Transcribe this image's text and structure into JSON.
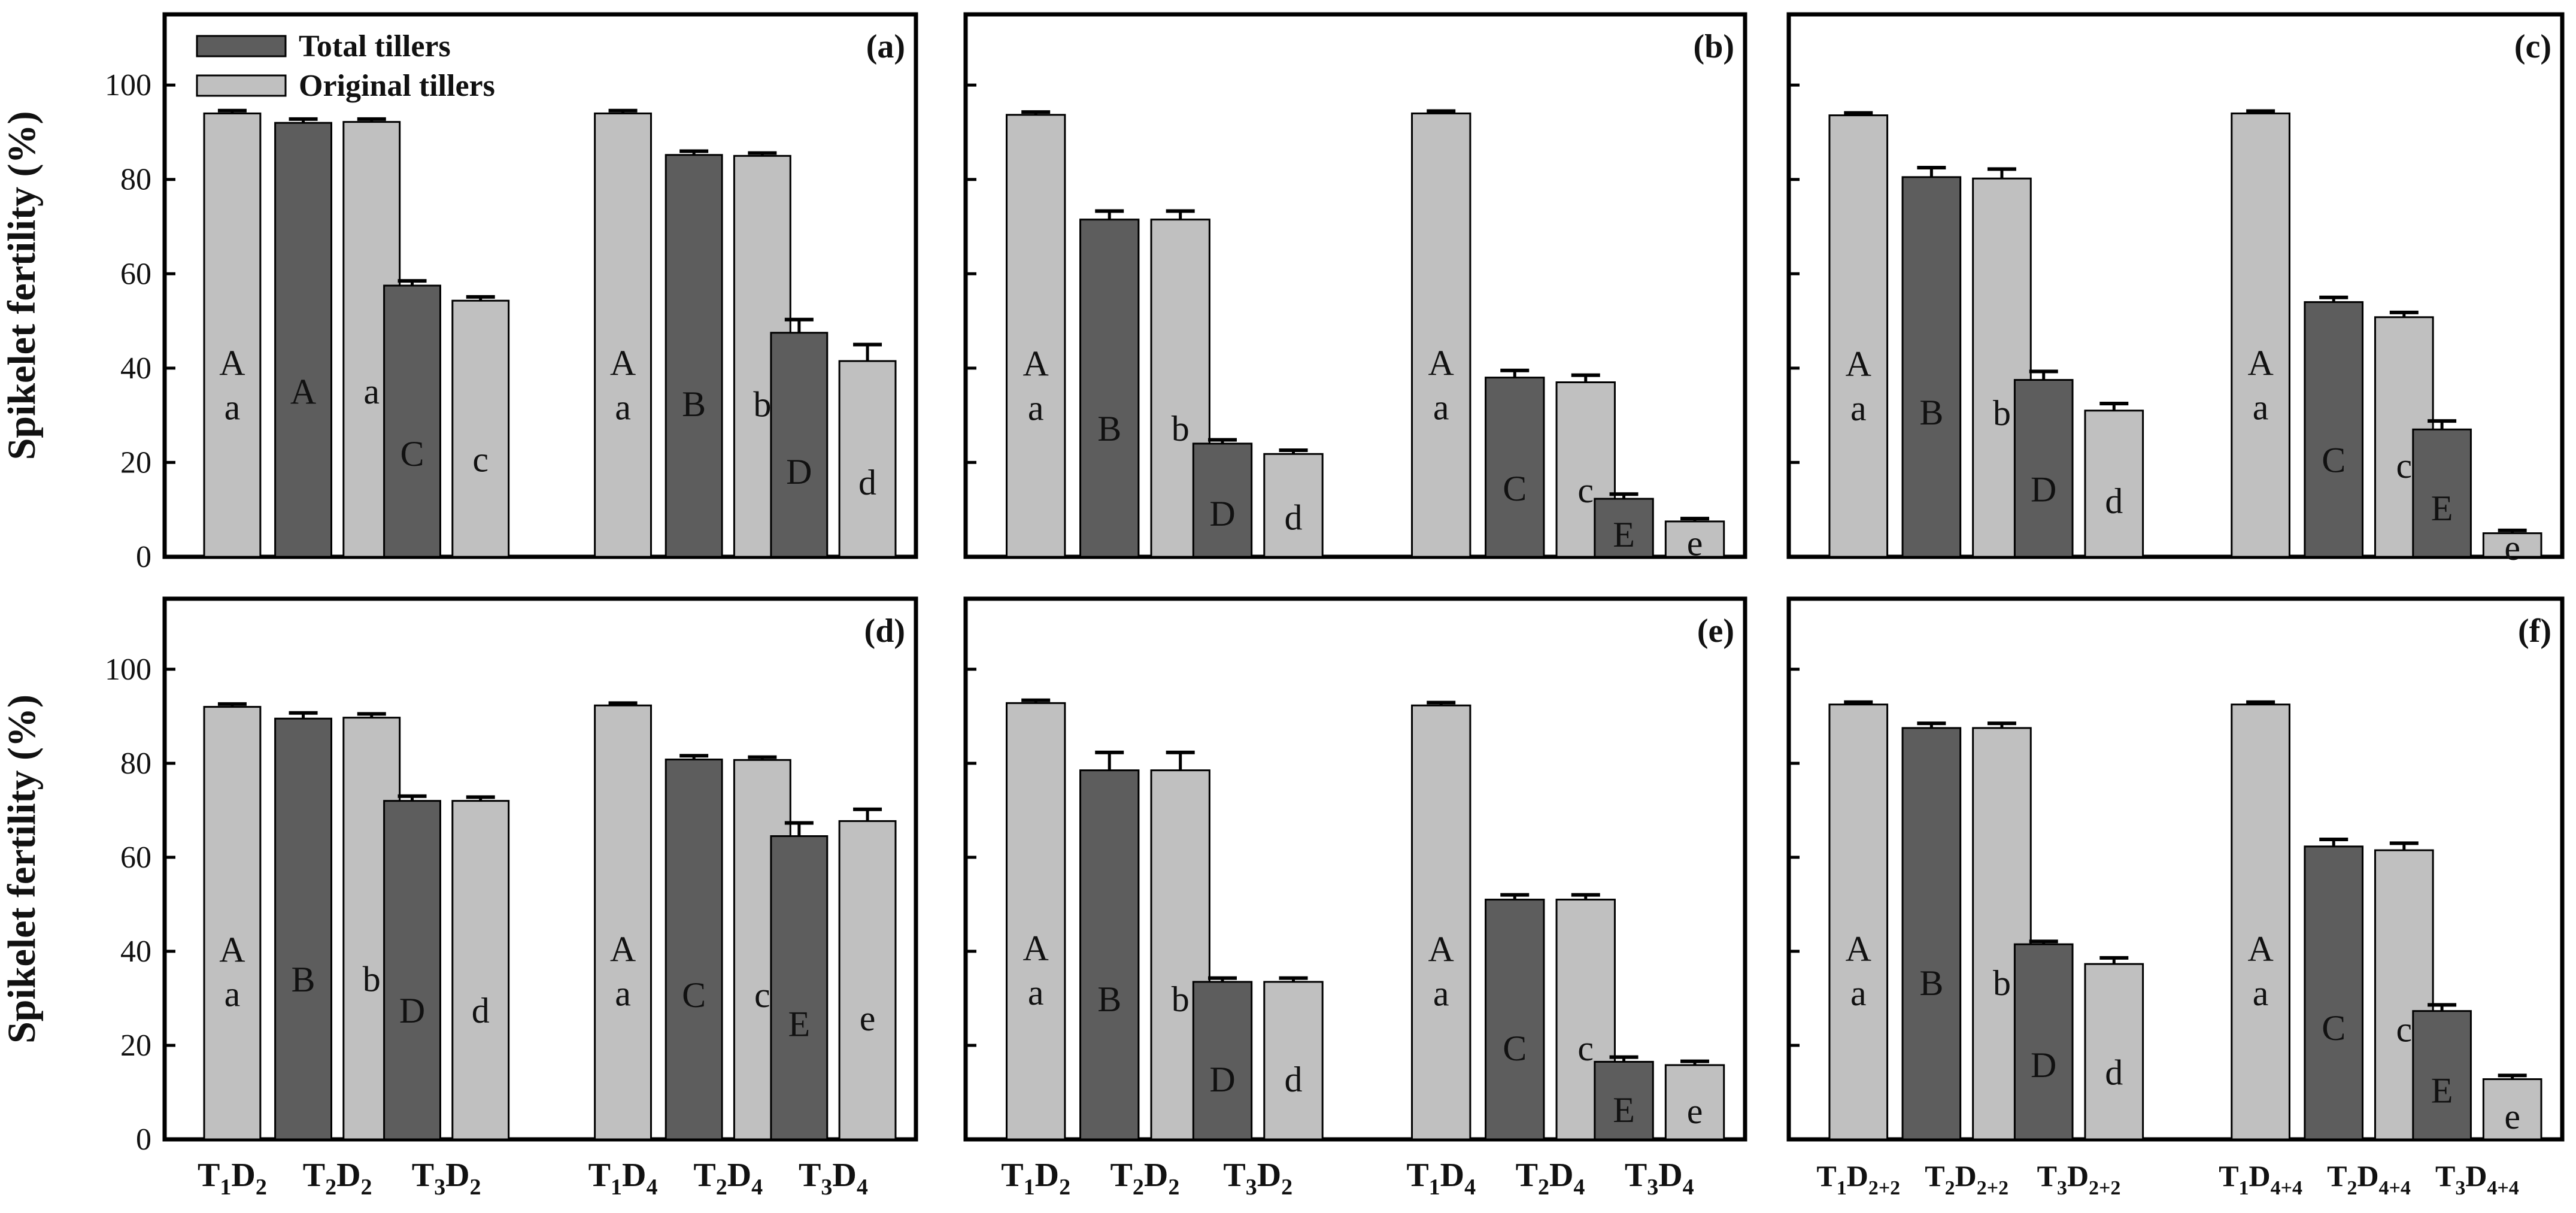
{
  "colors": {
    "total": "#5d5d5d",
    "original": "#c0c0c0",
    "frame": "#000000",
    "label": "#111111"
  },
  "y_axis": {
    "label": "Spikelet fertility (%)",
    "ylim": [
      0,
      115
    ],
    "ticks": [
      0,
      20,
      40,
      60,
      80,
      100
    ],
    "tick_labels": [
      "0",
      "20",
      "40",
      "60",
      "80",
      "100"
    ]
  },
  "legend": {
    "position": "top-left of panel (a)",
    "entries": [
      {
        "series": "total",
        "label": "Total tillers"
      },
      {
        "series": "original",
        "label": "Original tillers"
      }
    ]
  },
  "chart_data": [
    {
      "type": "bar",
      "title": "(a)",
      "row": 0,
      "col": 0,
      "categories": [
        {
          "T": "1",
          "D": "2"
        },
        {
          "T": "2",
          "D": "2"
        },
        {
          "T": "3",
          "D": "2"
        },
        {
          "T": "1",
          "D": "4"
        },
        {
          "T": "2",
          "D": "4"
        },
        {
          "T": "3",
          "D": "4"
        }
      ],
      "bars": [
        {
          "cat": 0,
          "series": "original",
          "value": 94.0,
          "error": 0.6,
          "letters": [
            "A",
            "a"
          ]
        },
        {
          "cat": 1,
          "series": "total",
          "value": 92.0,
          "error": 0.8,
          "letters": [
            "A"
          ]
        },
        {
          "cat": 1,
          "series": "original",
          "value": 92.2,
          "error": 0.6,
          "letters": [
            "a"
          ]
        },
        {
          "cat": 2,
          "series": "total",
          "value": 57.5,
          "error": 1.0,
          "letters": [
            "C"
          ]
        },
        {
          "cat": 2,
          "series": "original",
          "value": 54.3,
          "error": 0.8,
          "letters": [
            "c"
          ]
        },
        {
          "cat": 3,
          "series": "original",
          "value": 94.0,
          "error": 0.6,
          "letters": [
            "A",
            "a"
          ]
        },
        {
          "cat": 4,
          "series": "total",
          "value": 85.2,
          "error": 0.8,
          "letters": [
            "B"
          ]
        },
        {
          "cat": 4,
          "series": "original",
          "value": 85.0,
          "error": 0.6,
          "letters": [
            "b"
          ]
        },
        {
          "cat": 5,
          "series": "total",
          "value": 47.5,
          "error": 2.8,
          "letters": [
            "D"
          ]
        },
        {
          "cat": 5,
          "series": "original",
          "value": 41.5,
          "error": 3.5,
          "letters": [
            "d"
          ]
        }
      ]
    },
    {
      "type": "bar",
      "title": "(b)",
      "row": 0,
      "col": 1,
      "categories": [
        {
          "T": "1",
          "D": "2"
        },
        {
          "T": "2",
          "D": "2"
        },
        {
          "T": "3",
          "D": "2"
        },
        {
          "T": "1",
          "D": "4"
        },
        {
          "T": "2",
          "D": "4"
        },
        {
          "T": "3",
          "D": "4"
        }
      ],
      "bars": [
        {
          "cat": 0,
          "series": "original",
          "value": 93.7,
          "error": 0.6,
          "letters": [
            "A",
            "a"
          ]
        },
        {
          "cat": 1,
          "series": "total",
          "value": 71.5,
          "error": 1.8,
          "letters": [
            "B"
          ]
        },
        {
          "cat": 1,
          "series": "original",
          "value": 71.5,
          "error": 1.8,
          "letters": [
            "b"
          ]
        },
        {
          "cat": 2,
          "series": "total",
          "value": 24.0,
          "error": 0.8,
          "letters": [
            "D"
          ]
        },
        {
          "cat": 2,
          "series": "original",
          "value": 21.8,
          "error": 0.8,
          "letters": [
            "d"
          ]
        },
        {
          "cat": 3,
          "series": "original",
          "value": 94.0,
          "error": 0.5,
          "letters": [
            "A",
            "a"
          ]
        },
        {
          "cat": 4,
          "series": "total",
          "value": 38.0,
          "error": 1.5,
          "letters": [
            "C"
          ]
        },
        {
          "cat": 4,
          "series": "original",
          "value": 37.0,
          "error": 1.5,
          "letters": [
            "c"
          ]
        },
        {
          "cat": 5,
          "series": "total",
          "value": 12.3,
          "error": 1.0,
          "letters": [
            "E"
          ]
        },
        {
          "cat": 5,
          "series": "original",
          "value": 7.5,
          "error": 0.6,
          "letters": [
            "e"
          ]
        }
      ]
    },
    {
      "type": "bar",
      "title": "(c)",
      "row": 0,
      "col": 2,
      "categories": [
        {
          "T": "1",
          "D": "2+2"
        },
        {
          "T": "2",
          "D": "2+2"
        },
        {
          "T": "3",
          "D": "2+2"
        },
        {
          "T": "1",
          "D": "4+4"
        },
        {
          "T": "2",
          "D": "4+4"
        },
        {
          "T": "3",
          "D": "4+4"
        }
      ],
      "bars": [
        {
          "cat": 0,
          "series": "original",
          "value": 93.6,
          "error": 0.5,
          "letters": [
            "A",
            "a"
          ]
        },
        {
          "cat": 1,
          "series": "total",
          "value": 80.5,
          "error": 2.0,
          "letters": [
            "B"
          ]
        },
        {
          "cat": 1,
          "series": "original",
          "value": 80.2,
          "error": 2.0,
          "letters": [
            "b"
          ]
        },
        {
          "cat": 2,
          "series": "total",
          "value": 37.5,
          "error": 1.8,
          "letters": [
            "D"
          ]
        },
        {
          "cat": 2,
          "series": "original",
          "value": 31.0,
          "error": 1.5,
          "letters": [
            "d"
          ]
        },
        {
          "cat": 3,
          "series": "original",
          "value": 94.0,
          "error": 0.5,
          "letters": [
            "A",
            "a"
          ]
        },
        {
          "cat": 4,
          "series": "total",
          "value": 54.0,
          "error": 1.0,
          "letters": [
            "C"
          ]
        },
        {
          "cat": 4,
          "series": "original",
          "value": 50.8,
          "error": 1.0,
          "letters": [
            "c"
          ]
        },
        {
          "cat": 5,
          "series": "total",
          "value": 27.0,
          "error": 1.8,
          "letters": [
            "E"
          ]
        },
        {
          "cat": 5,
          "series": "original",
          "value": 5.0,
          "error": 0.6,
          "letters": [
            "e"
          ]
        }
      ]
    },
    {
      "type": "bar",
      "title": "(d)",
      "row": 1,
      "col": 0,
      "categories": [
        {
          "T": "1",
          "D": "2"
        },
        {
          "T": "2",
          "D": "2"
        },
        {
          "T": "3",
          "D": "2"
        },
        {
          "T": "1",
          "D": "4"
        },
        {
          "T": "2",
          "D": "4"
        },
        {
          "T": "3",
          "D": "4"
        }
      ],
      "bars": [
        {
          "cat": 0,
          "series": "original",
          "value": 92.0,
          "error": 0.6,
          "letters": [
            "A",
            "a"
          ]
        },
        {
          "cat": 1,
          "series": "total",
          "value": 89.5,
          "error": 1.2,
          "letters": [
            "B"
          ]
        },
        {
          "cat": 1,
          "series": "original",
          "value": 89.7,
          "error": 0.8,
          "letters": [
            "b"
          ]
        },
        {
          "cat": 2,
          "series": "total",
          "value": 72.0,
          "error": 1.0,
          "letters": [
            "D"
          ]
        },
        {
          "cat": 2,
          "series": "original",
          "value": 72.0,
          "error": 0.8,
          "letters": [
            "d"
          ]
        },
        {
          "cat": 3,
          "series": "original",
          "value": 92.3,
          "error": 0.5,
          "letters": [
            "A",
            "a"
          ]
        },
        {
          "cat": 4,
          "series": "total",
          "value": 80.8,
          "error": 0.8,
          "letters": [
            "C"
          ]
        },
        {
          "cat": 4,
          "series": "original",
          "value": 80.7,
          "error": 0.6,
          "letters": [
            "c"
          ]
        },
        {
          "cat": 5,
          "series": "total",
          "value": 64.5,
          "error": 2.8,
          "letters": [
            "E"
          ]
        },
        {
          "cat": 5,
          "series": "original",
          "value": 67.7,
          "error": 2.5,
          "letters": [
            "e"
          ]
        }
      ]
    },
    {
      "type": "bar",
      "title": "(e)",
      "row": 1,
      "col": 1,
      "categories": [
        {
          "T": "1",
          "D": "2"
        },
        {
          "T": "2",
          "D": "2"
        },
        {
          "T": "3",
          "D": "2"
        },
        {
          "T": "1",
          "D": "4"
        },
        {
          "T": "2",
          "D": "4"
        },
        {
          "T": "3",
          "D": "4"
        }
      ],
      "bars": [
        {
          "cat": 0,
          "series": "original",
          "value": 92.8,
          "error": 0.6,
          "letters": [
            "A",
            "a"
          ]
        },
        {
          "cat": 1,
          "series": "total",
          "value": 78.5,
          "error": 3.8,
          "letters": [
            "B"
          ]
        },
        {
          "cat": 1,
          "series": "original",
          "value": 78.5,
          "error": 3.8,
          "letters": [
            "b"
          ]
        },
        {
          "cat": 2,
          "series": "total",
          "value": 33.5,
          "error": 0.8,
          "letters": [
            "D"
          ]
        },
        {
          "cat": 2,
          "series": "original",
          "value": 33.5,
          "error": 0.8,
          "letters": [
            "d"
          ]
        },
        {
          "cat": 3,
          "series": "original",
          "value": 92.3,
          "error": 0.6,
          "letters": [
            "A",
            "a"
          ]
        },
        {
          "cat": 4,
          "series": "total",
          "value": 51.0,
          "error": 1.0,
          "letters": [
            "C"
          ]
        },
        {
          "cat": 4,
          "series": "original",
          "value": 51.0,
          "error": 1.0,
          "letters": [
            "c"
          ]
        },
        {
          "cat": 5,
          "series": "total",
          "value": 16.5,
          "error": 1.0,
          "letters": [
            "E"
          ]
        },
        {
          "cat": 5,
          "series": "original",
          "value": 15.8,
          "error": 0.8,
          "letters": [
            "e"
          ]
        }
      ]
    },
    {
      "type": "bar",
      "title": "(f)",
      "row": 1,
      "col": 2,
      "categories": [
        {
          "T": "1",
          "D": "2+2"
        },
        {
          "T": "2",
          "D": "2+2"
        },
        {
          "T": "3",
          "D": "2+2"
        },
        {
          "T": "1",
          "D": "4+4"
        },
        {
          "T": "2",
          "D": "4+4"
        },
        {
          "T": "3",
          "D": "4+4"
        }
      ],
      "bars": [
        {
          "cat": 0,
          "series": "original",
          "value": 92.5,
          "error": 0.5,
          "letters": [
            "A",
            "a"
          ]
        },
        {
          "cat": 1,
          "series": "total",
          "value": 87.5,
          "error": 1.0,
          "letters": [
            "B"
          ]
        },
        {
          "cat": 1,
          "series": "original",
          "value": 87.5,
          "error": 1.0,
          "letters": [
            "b"
          ]
        },
        {
          "cat": 2,
          "series": "total",
          "value": 41.5,
          "error": 0.6,
          "letters": [
            "D"
          ]
        },
        {
          "cat": 2,
          "series": "original",
          "value": 37.3,
          "error": 1.3,
          "letters": [
            "d"
          ]
        },
        {
          "cat": 3,
          "series": "original",
          "value": 92.5,
          "error": 0.5,
          "letters": [
            "A",
            "a"
          ]
        },
        {
          "cat": 4,
          "series": "total",
          "value": 62.3,
          "error": 1.5,
          "letters": [
            "C"
          ]
        },
        {
          "cat": 4,
          "series": "original",
          "value": 61.5,
          "error": 1.5,
          "letters": [
            "c"
          ]
        },
        {
          "cat": 5,
          "series": "total",
          "value": 27.3,
          "error": 1.3,
          "letters": [
            "E"
          ]
        },
        {
          "cat": 5,
          "series": "original",
          "value": 12.8,
          "error": 0.8,
          "letters": [
            "e"
          ]
        }
      ]
    }
  ]
}
